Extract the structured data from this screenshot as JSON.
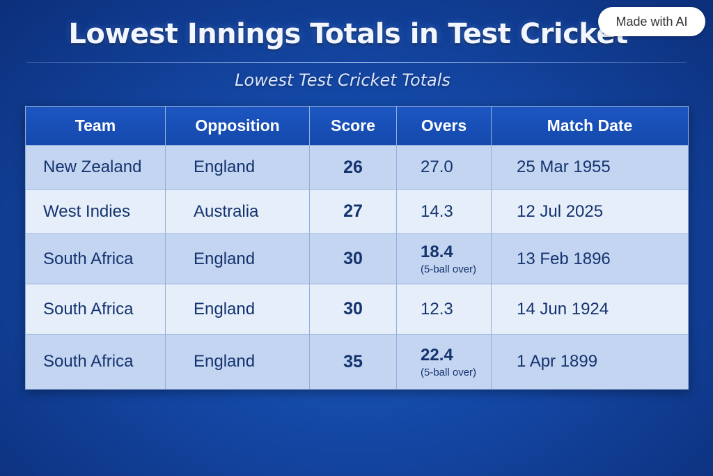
{
  "title": "Lowest Innings Totals in Test Cricket",
  "subtitle": "Lowest Test Cricket Totals",
  "badge": "Made with AI",
  "table": {
    "headers": [
      "Team",
      "Opposition",
      "Score",
      "Overs",
      "Match Date"
    ],
    "rows": [
      {
        "team": "New Zealand",
        "opposition": "England",
        "score": "26",
        "overs": "27.0",
        "overs_note": "",
        "date": "25 Mar 1955"
      },
      {
        "team": "West Indies",
        "opposition": "Australia",
        "score": "27",
        "overs": "14.3",
        "overs_note": "",
        "date": "12 Jul 2025"
      },
      {
        "team": "South Africa",
        "opposition": "England",
        "score": "30",
        "overs": "18.4",
        "overs_note": "(5-ball over)",
        "date": "13 Feb 1896"
      },
      {
        "team": "South Africa",
        "opposition": "England",
        "score": "30",
        "overs": "12.3",
        "overs_note": "",
        "date": "14 Jun 1924"
      },
      {
        "team": "South Africa",
        "opposition": "England",
        "score": "35",
        "overs": "22.4",
        "overs_note": "(5-ball over)",
        "date": "1 Apr 1899"
      }
    ]
  }
}
